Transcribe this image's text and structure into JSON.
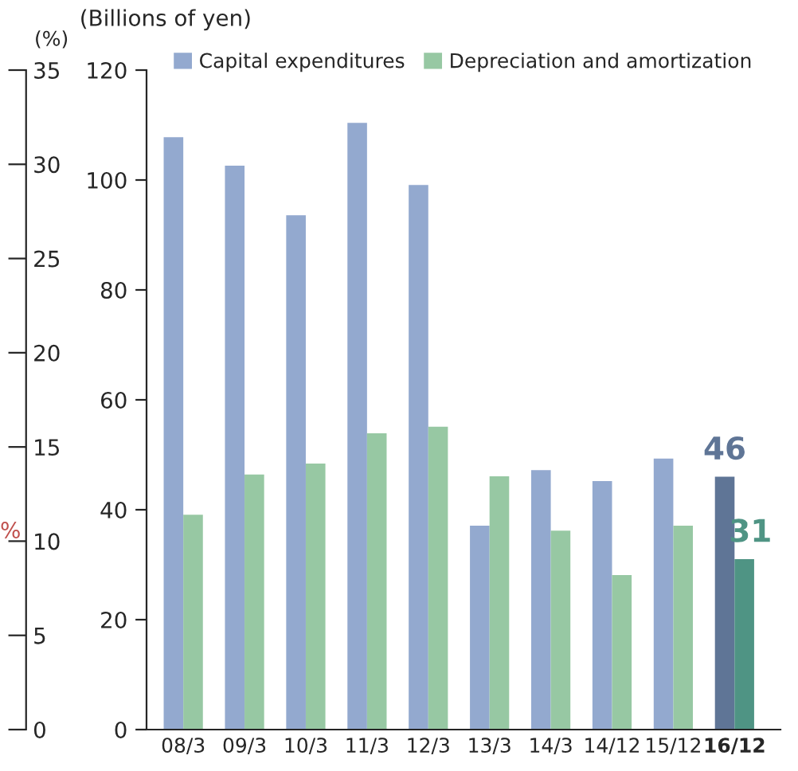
{
  "chart_data": {
    "type": "bar",
    "ylabel": "(Billions of yen)",
    "y2label": "(%)",
    "categories": [
      "08/3",
      "09/3",
      "10/3",
      "11/3",
      "12/3",
      "13/3",
      "14/3",
      "14/12",
      "15/12",
      "16/12"
    ],
    "series": [
      {
        "name": "Capital expenditures",
        "color": "#93a9cf",
        "colors": [
          "#93a9cf",
          "#93a9cf",
          "#93a9cf",
          "#93a9cf",
          "#93a9cf",
          "#93a9cf",
          "#93a9cf",
          "#93a9cf",
          "#93a9cf",
          "#5f7596"
        ],
        "values": [
          107.8,
          102.6,
          93.6,
          110.4,
          99.1,
          37.1,
          47.2,
          45.2,
          49.3,
          46
        ],
        "value_labels": [
          null,
          null,
          null,
          null,
          null,
          null,
          null,
          null,
          null,
          "46"
        ]
      },
      {
        "name": "Depreciation and amortization",
        "color": "#97c8a3",
        "colors": [
          "#97c8a3",
          "#97c8a3",
          "#97c8a3",
          "#97c8a3",
          "#97c8a3",
          "#97c8a3",
          "#97c8a3",
          "#97c8a3",
          "#97c8a3",
          "#4f9484"
        ],
        "values": [
          39.1,
          46.4,
          48.4,
          53.9,
          55.1,
          46.1,
          36.2,
          28.1,
          37.1,
          31
        ],
        "value_labels": [
          null,
          null,
          null,
          null,
          null,
          null,
          null,
          null,
          null,
          "31"
        ]
      }
    ],
    "ylim": [
      0,
      120
    ],
    "yticks": [
      0,
      20,
      40,
      60,
      80,
      100,
      120
    ],
    "y2lim": [
      0,
      35
    ],
    "y2ticks": [
      0,
      5,
      10,
      15,
      20,
      25,
      30,
      35
    ],
    "annotations": [
      "%"
    ],
    "legend": "top",
    "grid": false
  }
}
